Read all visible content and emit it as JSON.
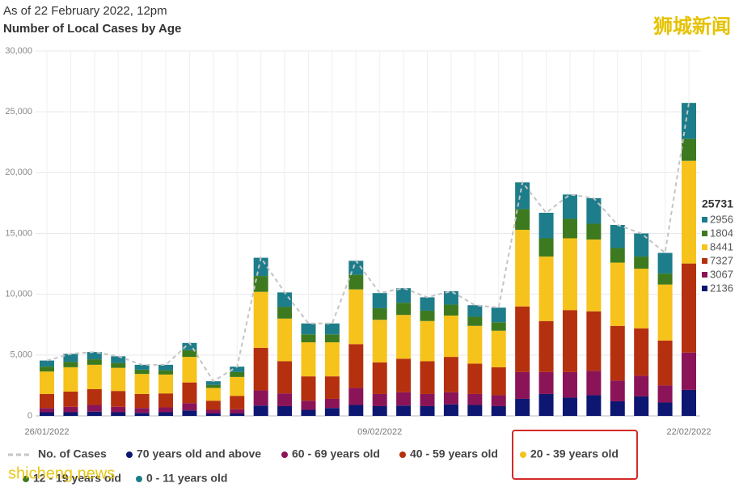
{
  "chart_data": {
    "type": "stacked-bar",
    "subtitle": "As of 22 February 2022, 12pm",
    "title": "Number of Local Cases by Age",
    "watermark": "狮城新闻",
    "watermark_url": "shicheng.news",
    "categories": [
      "26/01/2022",
      null,
      null,
      null,
      null,
      null,
      null,
      null,
      null,
      null,
      null,
      null,
      null,
      null,
      "09/02/2022",
      null,
      null,
      null,
      null,
      null,
      null,
      null,
      null,
      null,
      null,
      null,
      null,
      "22/02/2022"
    ],
    "ylim": [
      0,
      30000
    ],
    "yticks": [
      0,
      {
        "value": 5000,
        "label": "5,000"
      },
      {
        "value": 10000,
        "label": "10,000"
      },
      {
        "value": 15000,
        "label": "15,000"
      },
      {
        "value": 20000,
        "label": "20,000"
      },
      {
        "value": 25000,
        "label": "25,000"
      },
      {
        "value": 30000,
        "label": "30,000"
      }
    ],
    "grid": true,
    "total": {
      "name": "No. of Cases",
      "color": "#c4c4c4",
      "dashed": true,
      "values": [
        4550,
        5100,
        5250,
        4900,
        4200,
        4200,
        6000,
        2850,
        4050,
        13000,
        10150,
        7600,
        7600,
        12750,
        10100,
        10500,
        9750,
        10250,
        9100,
        8900,
        19200,
        16700,
        18200,
        17900,
        15700,
        15000,
        13400,
        25731
      ]
    },
    "series": [
      {
        "name": "70 years old and above",
        "color": "#0d1670",
        "values": [
          300,
          300,
          350,
          300,
          250,
          300,
          450,
          200,
          200,
          850,
          800,
          500,
          650,
          900,
          800,
          850,
          800,
          950,
          900,
          800,
          1400,
          1800,
          1500,
          1700,
          1200,
          1600,
          1100,
          2136
        ]
      },
      {
        "name": "60 - 69 years old",
        "color": "#8a1457",
        "values": [
          350,
          450,
          550,
          450,
          400,
          400,
          600,
          300,
          350,
          1250,
          1050,
          750,
          750,
          1400,
          1000,
          1100,
          1000,
          1000,
          900,
          900,
          2200,
          1800,
          2100,
          2000,
          1700,
          1700,
          1400,
          3067
        ]
      },
      {
        "name": "40 - 59 years old",
        "color": "#b5300e",
        "values": [
          1150,
          1250,
          1300,
          1300,
          1150,
          1150,
          1700,
          750,
          1100,
          3500,
          2650,
          2000,
          1850,
          3600,
          2600,
          2750,
          2700,
          2900,
          2500,
          2300,
          5400,
          4200,
          5100,
          4900,
          4500,
          3900,
          3700,
          7327
        ]
      },
      {
        "name": "20 - 39 years old",
        "color": "#f6c31c",
        "values": [
          1850,
          2000,
          2000,
          1900,
          1650,
          1550,
          2100,
          1050,
          1550,
          4600,
          3500,
          2800,
          2800,
          4500,
          3500,
          3600,
          3300,
          3400,
          3100,
          3000,
          6300,
          5300,
          5900,
          5900,
          5200,
          4900,
          4600,
          8441
        ]
      },
      {
        "name": "12 - 19 years old",
        "color": "#3d7a1f",
        "values": [
          400,
          450,
          450,
          400,
          350,
          350,
          550,
          250,
          400,
          1300,
          950,
          650,
          650,
          1200,
          950,
          1000,
          850,
          900,
          750,
          700,
          1700,
          1500,
          1600,
          1300,
          1200,
          1000,
          900,
          1804
        ]
      },
      {
        "name": "0 - 11 years old",
        "color": "#1d7d8a",
        "values": [
          500,
          650,
          600,
          550,
          400,
          450,
          600,
          300,
          450,
          1500,
          1200,
          900,
          900,
          1150,
          1250,
          1200,
          1100,
          1100,
          950,
          1200,
          2200,
          2100,
          2000,
          2100,
          1900,
          1900,
          1700,
          2956
        ]
      }
    ]
  }
}
